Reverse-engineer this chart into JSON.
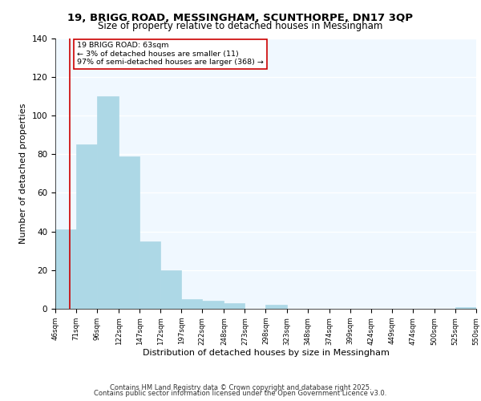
{
  "title": "19, BRIGG ROAD, MESSINGHAM, SCUNTHORPE, DN17 3QP",
  "subtitle": "Size of property relative to detached houses in Messingham",
  "xlabel": "Distribution of detached houses by size in Messingham",
  "ylabel": "Number of detached properties",
  "bar_edges": [
    46,
    71,
    96,
    122,
    147,
    172,
    197,
    222,
    248,
    273,
    298,
    323,
    348,
    374,
    399,
    424,
    449,
    474,
    500,
    525,
    550
  ],
  "bar_heights": [
    41,
    85,
    110,
    79,
    35,
    20,
    5,
    4,
    3,
    0,
    2,
    0,
    0,
    0,
    0,
    0,
    0,
    0,
    0,
    1
  ],
  "bar_color": "#add8e6",
  "bar_edgecolor": "#add8e6",
  "vline_x": 63,
  "vline_color": "#cc0000",
  "ylim": [
    0,
    140
  ],
  "yticks": [
    0,
    20,
    40,
    60,
    80,
    100,
    120,
    140
  ],
  "xtick_labels": [
    "46sqm",
    "71sqm",
    "96sqm",
    "122sqm",
    "147sqm",
    "172sqm",
    "197sqm",
    "222sqm",
    "248sqm",
    "273sqm",
    "298sqm",
    "323sqm",
    "348sqm",
    "374sqm",
    "399sqm",
    "424sqm",
    "449sqm",
    "474sqm",
    "500sqm",
    "525sqm",
    "550sqm"
  ],
  "annotation_title": "19 BRIGG ROAD: 63sqm",
  "annotation_line1": "← 3% of detached houses are smaller (11)",
  "annotation_line2": "97% of semi-detached houses are larger (368) →",
  "box_edgecolor": "#cc0000",
  "footer_line1": "Contains HM Land Registry data © Crown copyright and database right 2025.",
  "footer_line2": "Contains public sector information licensed under the Open Government Licence v3.0.",
  "bg_color": "#f0f8ff",
  "grid_color": "#ffffff"
}
